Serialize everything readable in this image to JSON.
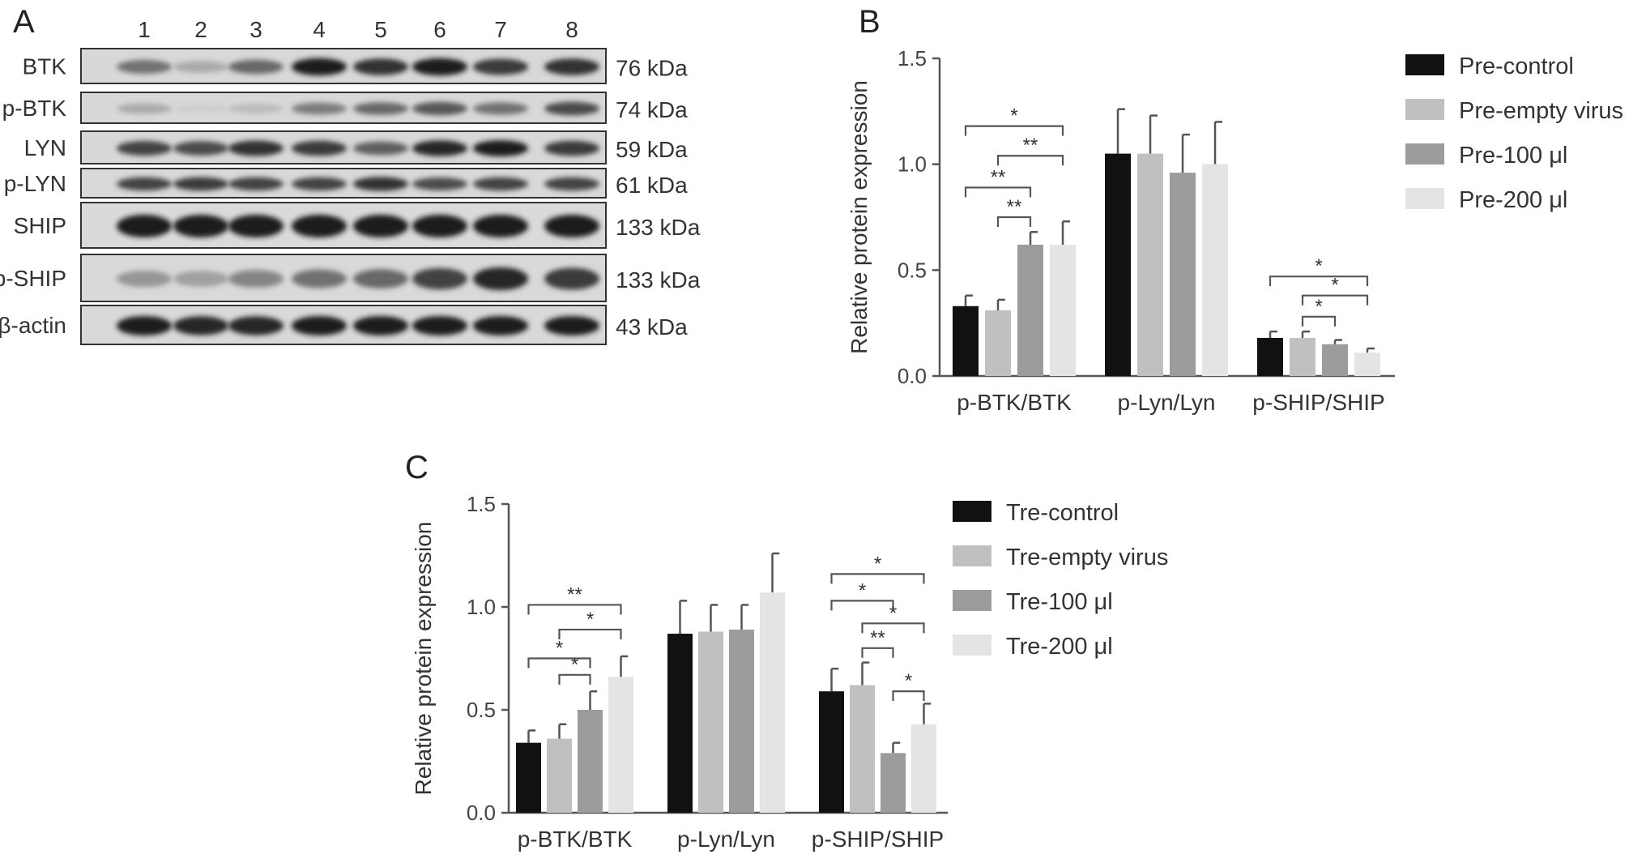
{
  "panels": {
    "a": "A",
    "b": "B",
    "c": "C"
  },
  "blot": {
    "lanes": [
      "1",
      "2",
      "3",
      "4",
      "5",
      "6",
      "7",
      "8"
    ],
    "rows": [
      {
        "name": "BTK",
        "kda": "76 kDa",
        "bands": [
          0.55,
          0.25,
          0.6,
          1.0,
          0.9,
          1.0,
          0.85,
          0.9
        ],
        "tone": 0.88
      },
      {
        "name": "p-BTK",
        "kda": "74 kDa",
        "bands": [
          0.25,
          0.05,
          0.15,
          0.5,
          0.6,
          0.7,
          0.55,
          0.75
        ],
        "tone": 0.9
      },
      {
        "name": "LYN",
        "kda": "59 kDa",
        "bands": [
          0.8,
          0.75,
          0.9,
          0.85,
          0.65,
          0.95,
          1.0,
          0.85
        ],
        "tone": 0.87
      },
      {
        "name": "p-LYN",
        "kda": "61 kDa",
        "bands": [
          0.8,
          0.85,
          0.8,
          0.8,
          0.9,
          0.75,
          0.8,
          0.8
        ],
        "tone": 0.86
      },
      {
        "name": "SHIP",
        "kda": "133 kDa",
        "bands": [
          1.0,
          1.0,
          1.0,
          1.0,
          1.0,
          1.0,
          1.0,
          1.0
        ],
        "tone": 0.8
      },
      {
        "name": "p-SHIP",
        "kda": "133 kDa",
        "bands": [
          0.35,
          0.3,
          0.45,
          0.55,
          0.6,
          0.8,
          0.95,
          0.85
        ],
        "tone": 0.82
      },
      {
        "name": "β-actin",
        "kda": "43 kDa",
        "bands": [
          1.0,
          0.95,
          0.95,
          1.0,
          1.0,
          1.0,
          1.0,
          1.0
        ],
        "tone": 0.82
      }
    ]
  },
  "colors": {
    "series1": "#111111",
    "series2": "#c0c0c0",
    "series3": "#9c9c9c",
    "series4": "#e4e4e4"
  },
  "chart_data": [
    {
      "id": "B",
      "type": "bar",
      "ylabel": "Relative protein expression",
      "ylim": [
        0,
        1.5
      ],
      "yticks": [
        "0.0",
        "0.5",
        "1.0",
        "1.5"
      ],
      "categories": [
        "p-BTK/BTK",
        "p-Lyn/Lyn",
        "p-SHIP/SHIP"
      ],
      "series": [
        {
          "name": "Pre-control",
          "values": [
            0.33,
            1.05,
            0.18
          ],
          "errors": [
            0.05,
            0.21,
            0.03
          ]
        },
        {
          "name": "Pre-empty virus",
          "values": [
            0.31,
            1.05,
            0.18
          ],
          "errors": [
            0.05,
            0.18,
            0.03
          ]
        },
        {
          "name": "Pre-100 μl",
          "values": [
            0.62,
            0.96,
            0.15
          ],
          "errors": [
            0.06,
            0.18,
            0.02
          ]
        },
        {
          "name": "Pre-200 μl",
          "values": [
            0.62,
            1.0,
            0.11
          ],
          "errors": [
            0.11,
            0.2,
            0.02
          ]
        }
      ],
      "significance": [
        {
          "category": 0,
          "from": 0,
          "to": 3,
          "y": 1.18,
          "label": "*"
        },
        {
          "category": 0,
          "from": 1,
          "to": 3,
          "y": 1.04,
          "label": "**"
        },
        {
          "category": 0,
          "from": 0,
          "to": 2,
          "y": 0.89,
          "label": "**"
        },
        {
          "category": 0,
          "from": 1,
          "to": 2,
          "y": 0.75,
          "label": "**"
        },
        {
          "category": 2,
          "from": 0,
          "to": 3,
          "y": 0.47,
          "label": "*"
        },
        {
          "category": 2,
          "from": 1,
          "to": 3,
          "y": 0.38,
          "label": "*"
        },
        {
          "category": 2,
          "from": 1,
          "to": 2,
          "y": 0.28,
          "label": "*"
        }
      ],
      "legend": "right"
    },
    {
      "id": "C",
      "type": "bar",
      "ylabel": "Relative protein expression",
      "ylim": [
        0,
        1.5
      ],
      "yticks": [
        "0.0",
        "0.5",
        "1.0",
        "1.5"
      ],
      "categories": [
        "p-BTK/BTK",
        "p-Lyn/Lyn",
        "p-SHIP/SHIP"
      ],
      "series": [
        {
          "name": "Tre-control",
          "values": [
            0.34,
            0.87,
            0.59
          ],
          "errors": [
            0.06,
            0.16,
            0.11
          ]
        },
        {
          "name": "Tre-empty virus",
          "values": [
            0.36,
            0.88,
            0.62
          ],
          "errors": [
            0.07,
            0.13,
            0.11
          ]
        },
        {
          "name": "Tre-100 μl",
          "values": [
            0.5,
            0.89,
            0.29
          ],
          "errors": [
            0.09,
            0.12,
            0.05
          ]
        },
        {
          "name": "Tre-200 μl",
          "values": [
            0.66,
            1.07,
            0.43
          ],
          "errors": [
            0.1,
            0.19,
            0.1
          ]
        }
      ],
      "significance": [
        {
          "category": 0,
          "from": 0,
          "to": 3,
          "y": 1.01,
          "label": "**"
        },
        {
          "category": 0,
          "from": 1,
          "to": 3,
          "y": 0.89,
          "label": "*"
        },
        {
          "category": 0,
          "from": 0,
          "to": 2,
          "y": 0.75,
          "label": "*"
        },
        {
          "category": 0,
          "from": 1,
          "to": 2,
          "y": 0.67,
          "label": "*"
        },
        {
          "category": 2,
          "from": 0,
          "to": 3,
          "y": 1.16,
          "label": "*"
        },
        {
          "category": 2,
          "from": 0,
          "to": 2,
          "y": 1.03,
          "label": "*"
        },
        {
          "category": 2,
          "from": 1,
          "to": 3,
          "y": 0.92,
          "label": "*"
        },
        {
          "category": 2,
          "from": 1,
          "to": 2,
          "y": 0.8,
          "label": "**"
        },
        {
          "category": 2,
          "from": 2,
          "to": 3,
          "y": 0.59,
          "label": "*"
        }
      ],
      "legend": "right"
    }
  ]
}
